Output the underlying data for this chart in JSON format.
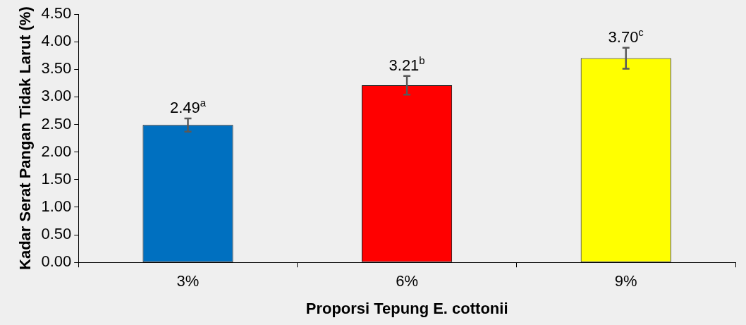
{
  "chart_data": {
    "type": "bar",
    "xlabel": "Proporsi Tepung E. cottonii",
    "ylabel": "Kadar Serat Pangan Tidak Larut (%)",
    "categories": [
      "3%",
      "6%",
      "9%"
    ],
    "values": [
      2.49,
      3.21,
      3.7
    ],
    "colors": [
      "#0070c0",
      "#ff0000",
      "#ffff00"
    ],
    "errors": [
      0.12,
      0.17,
      0.19
    ],
    "value_labels": [
      "2.49$^{a}$",
      "3.21$^{b}$",
      "3.70$^{c}$"
    ],
    "ylim": [
      0,
      4.5
    ],
    "yticks": [
      {
        "value": 0,
        "label": "0.00"
      },
      {
        "value": 0.5,
        "label": "0.50"
      },
      {
        "value": 1,
        "label": "1.00"
      },
      {
        "value": 1.5,
        "label": "1.50"
      },
      {
        "value": 2,
        "label": "2.00"
      },
      {
        "value": 2.5,
        "label": "2.50"
      },
      {
        "value": 3,
        "label": "3.00"
      },
      {
        "value": 3.5,
        "label": "3.50"
      },
      {
        "value": 4,
        "label": "4.00"
      },
      {
        "value": 4.5,
        "label": "4.50"
      }
    ],
    "grid": false,
    "legend": false
  }
}
